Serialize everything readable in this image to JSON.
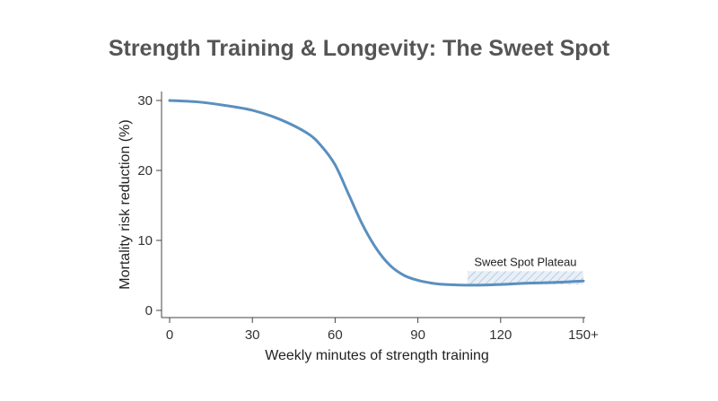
{
  "chart_data": {
    "type": "line",
    "title": "Strength Training & Longevity: The Sweet Spot",
    "xlabel": "Weekly minutes of strength training",
    "ylabel": "Mortality risk reduction (%)",
    "xlim": [
      0,
      150
    ],
    "ylim": [
      0,
      30
    ],
    "x_ticks": [
      0,
      30,
      60,
      90,
      120,
      150
    ],
    "x_tick_labels": [
      "0",
      "30",
      "60",
      "90",
      "120",
      "150+"
    ],
    "y_ticks": [
      0,
      10,
      20,
      30
    ],
    "y_tick_labels": [
      "0",
      "10",
      "20",
      "30"
    ],
    "grid": false,
    "series": [
      {
        "color": "#5b8fbf",
        "x": [
          0,
          10,
          20,
          30,
          40,
          50,
          55,
          60,
          65,
          70,
          75,
          80,
          85,
          90,
          95,
          100,
          110,
          120,
          130,
          140,
          150
        ],
        "y": [
          30,
          29.8,
          29.3,
          28.6,
          27.3,
          25.3,
          23.5,
          20.8,
          16.5,
          12.2,
          8.8,
          6.4,
          5.0,
          4.3,
          3.9,
          3.7,
          3.6,
          3.7,
          3.9,
          4.0,
          4.2
        ]
      }
    ],
    "annotations": [
      {
        "label": "Sweet Spot Plateau",
        "x_range": [
          108,
          150
        ],
        "y_range": [
          3.7,
          5.6
        ]
      }
    ]
  }
}
